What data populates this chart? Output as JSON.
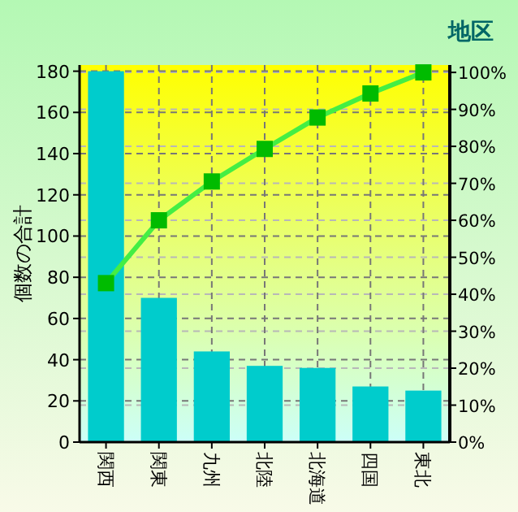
{
  "chart_data": {
    "type": "bar",
    "title": "地区",
    "ylabel": "個数の合計",
    "categories": [
      "関西",
      "関東",
      "九州",
      "北陸",
      "北海道",
      "四国",
      "東北"
    ],
    "series": [
      {
        "color": "#00cccc",
        "values": [
          180,
          70,
          44,
          37,
          36,
          27,
          25
        ]
      },
      {
        "type": "line",
        "axis": "y2",
        "color": "#44ee44",
        "marker": "square",
        "line_style": "solid",
        "values": [
          43,
          60,
          70.5,
          79.3,
          87.8,
          94.3,
          100
        ]
      }
    ],
    "ylim": [
      0,
      183
    ],
    "yticks": [
      0,
      20,
      40,
      60,
      80,
      100,
      120,
      140,
      160,
      180
    ],
    "y2lim": [
      0,
      102
    ],
    "y2ticks": [
      {
        "value": 0,
        "label": "0%"
      },
      {
        "value": 10,
        "label": "10%"
      },
      {
        "value": 20,
        "label": "20%"
      },
      {
        "value": 30,
        "label": "30%"
      },
      {
        "value": 40,
        "label": "40%"
      },
      {
        "value": 50,
        "label": "50%"
      },
      {
        "value": 60,
        "label": "60%"
      },
      {
        "value": 70,
        "label": "70%"
      },
      {
        "value": 80,
        "label": "80%"
      },
      {
        "value": 90,
        "label": "90%"
      },
      {
        "value": 100,
        "label": "100%"
      }
    ],
    "grid": true
  }
}
